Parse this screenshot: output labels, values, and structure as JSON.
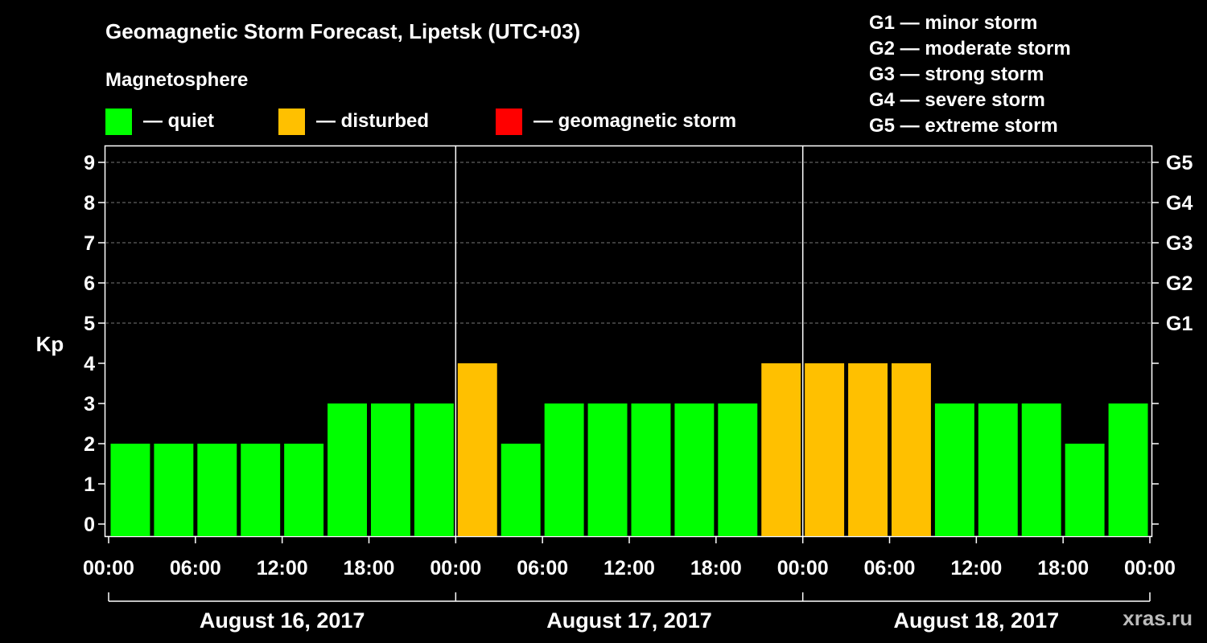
{
  "header": {
    "title": "Geomagnetic Storm Forecast, Lipetsk (UTC+03)",
    "subtitle": "Magnetosphere"
  },
  "legend": [
    {
      "label": "— quiet",
      "color": "#00ff00"
    },
    {
      "label": "— disturbed",
      "color": "#ffc000"
    },
    {
      "label": "— geomagnetic storm",
      "color": "#ff0000"
    }
  ],
  "storm_scale": [
    "G1 — minor storm",
    "G2 — moderate storm",
    "G3 — strong storm",
    "G4 — severe storm",
    "G5 — extreme storm"
  ],
  "watermark": "xras.ru",
  "chart_data": {
    "type": "bar",
    "title": "Geomagnetic Storm Forecast, Lipetsk (UTC+03)",
    "ylabel": "Kp",
    "xlabel": "",
    "ylim": [
      0,
      9
    ],
    "yticks": [
      "0",
      "1",
      "2",
      "3",
      "4",
      "5",
      "6",
      "7",
      "8",
      "9"
    ],
    "right_ticks": [
      {
        "kp": 5,
        "label": "G1"
      },
      {
        "kp": 6,
        "label": "G2"
      },
      {
        "kp": 7,
        "label": "G3"
      },
      {
        "kp": 8,
        "label": "G4"
      },
      {
        "kp": 9,
        "label": "G5"
      }
    ],
    "xtick_labels": [
      "00:00",
      "06:00",
      "12:00",
      "18:00",
      "00:00",
      "06:00",
      "12:00",
      "18:00",
      "00:00",
      "06:00",
      "12:00",
      "18:00",
      "00:00"
    ],
    "xtick_hours": [
      0,
      6,
      12,
      18,
      24,
      30,
      36,
      42,
      48,
      54,
      60,
      66,
      72
    ],
    "days": [
      "August 16, 2017",
      "August 17, 2017",
      "August 18, 2017"
    ],
    "interval_hours": 3,
    "values": [
      2,
      2,
      2,
      2,
      2,
      3,
      3,
      3,
      4,
      2,
      3,
      3,
      3,
      3,
      3,
      4,
      4,
      4,
      4,
      3,
      3,
      3,
      2,
      3
    ],
    "grid_levels": [
      5,
      6,
      7,
      8,
      9
    ],
    "thresholds": {
      "quiet_max": 3,
      "disturbed_max": 4
    },
    "colors": {
      "quiet": "#00ff00",
      "disturbed": "#ffc000",
      "storm": "#ff0000"
    }
  }
}
